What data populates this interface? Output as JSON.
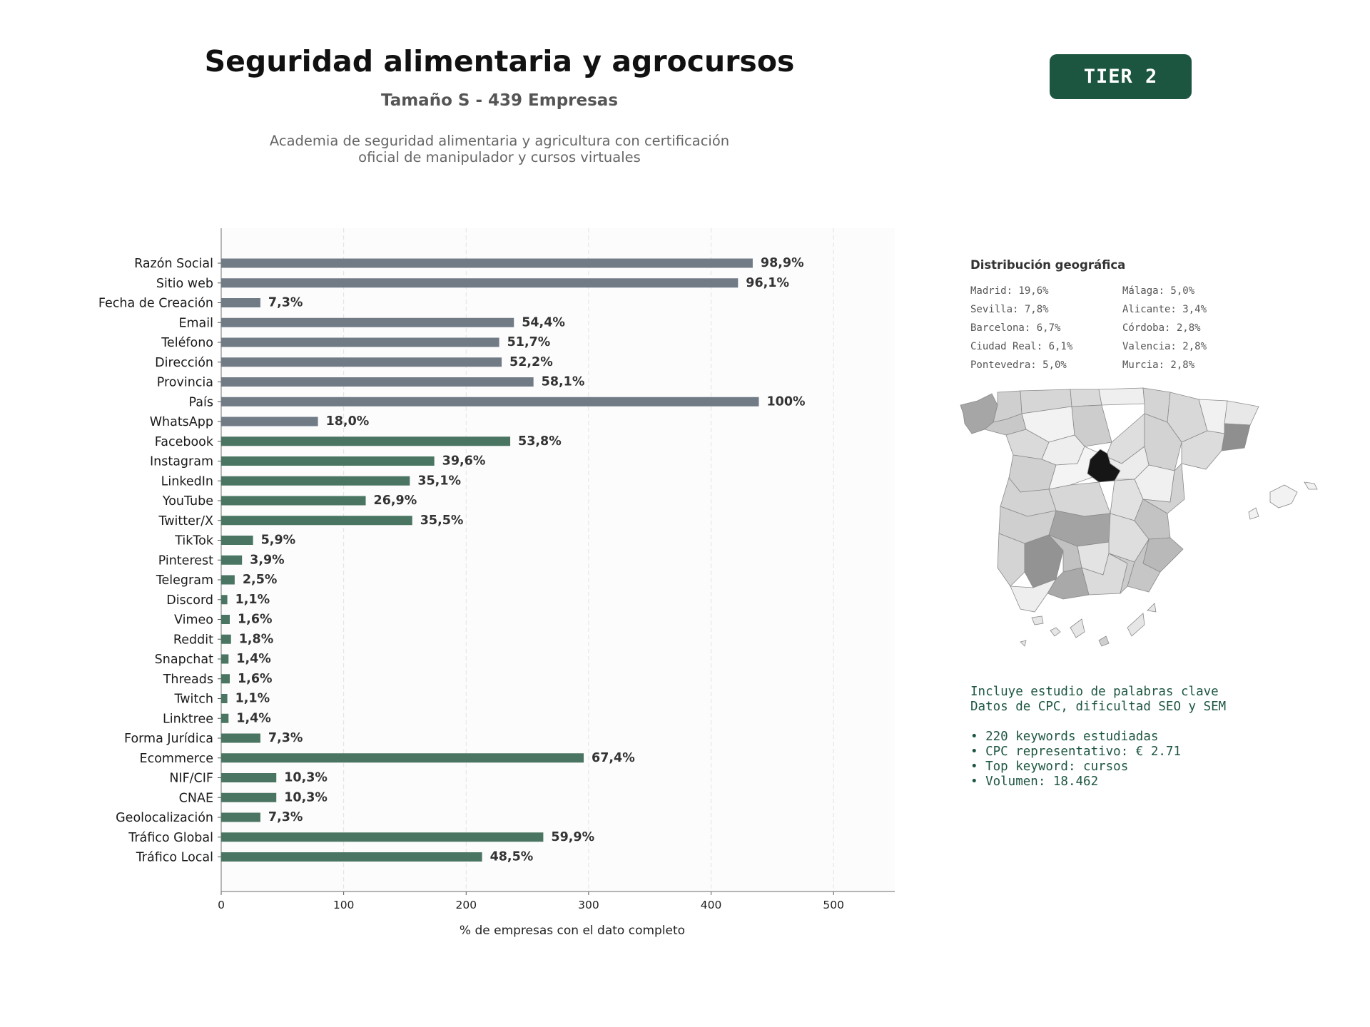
{
  "header": {
    "title": "Seguridad alimentaria y agrocursos",
    "subtitle": "Tamaño S - 439 Empresas",
    "description_line1": "Academia de seguridad alimentaria y agricultura con certificación",
    "description_line2": "oficial de manipulador y cursos virtuales",
    "tier_badge": "TIER 2"
  },
  "colors": {
    "gray_bar": "#717b86",
    "green_bar": "#4a7562",
    "badge": "#1d5640",
    "text_green": "#1d5640"
  },
  "chart_data": {
    "type": "bar",
    "orientation": "horizontal",
    "categories": [
      "Razón Social",
      "Sitio web",
      "Fecha de Creación",
      "Email",
      "Teléfono",
      "Dirección",
      "Provincia",
      "País",
      "WhatsApp",
      "Facebook",
      "Instagram",
      "LinkedIn",
      "YouTube",
      "Twitter/X",
      "TikTok",
      "Pinterest",
      "Telegram",
      "Discord",
      "Vimeo",
      "Reddit",
      "Snapchat",
      "Threads",
      "Twitch",
      "Linktree",
      "Forma Jurídica",
      "Ecommerce",
      "NIF/CIF",
      "CNAE",
      "Geolocalización",
      "Tráfico Global",
      "Tráfico Local"
    ],
    "values": [
      434,
      422,
      32,
      239,
      227,
      229,
      255,
      439,
      79,
      236,
      174,
      154,
      118,
      156,
      26,
      17,
      11,
      5,
      7,
      8,
      6,
      7,
      5,
      6,
      32,
      296,
      45,
      45,
      32,
      263,
      213
    ],
    "labels": [
      "98,9%",
      "96,1%",
      "7,3%",
      "54,4%",
      "51,7%",
      "52,2%",
      "58,1%",
      "100%",
      "18,0%",
      "53,8%",
      "39,6%",
      "35,1%",
      "26,9%",
      "35,5%",
      "5,9%",
      "3,9%",
      "2,5%",
      "1,1%",
      "1,6%",
      "1,8%",
      "1,4%",
      "1,6%",
      "1,1%",
      "1,4%",
      "7,3%",
      "67,4%",
      "10,3%",
      "10,3%",
      "7,3%",
      "59,9%",
      "48,5%"
    ],
    "bar_groups": [
      "gray",
      "gray",
      "gray",
      "gray",
      "gray",
      "gray",
      "gray",
      "gray",
      "gray",
      "green",
      "green",
      "green",
      "green",
      "green",
      "green",
      "green",
      "green",
      "green",
      "green",
      "green",
      "green",
      "green",
      "green",
      "green",
      "green",
      "green",
      "green",
      "green",
      "green",
      "green",
      "green"
    ],
    "xlabel": "% de empresas con el dato completo",
    "ylabel": "",
    "xlim": [
      0,
      550
    ],
    "xticks": [
      0,
      100,
      200,
      300,
      400,
      500
    ],
    "grid": "vertical dashed"
  },
  "geo": {
    "title": "Distribución geográfica",
    "col1": [
      "Madrid: 19,6%",
      "Sevilla: 7,8%",
      "Barcelona: 6,7%",
      "Ciudad Real: 6,1%",
      "Pontevedra: 5,0%"
    ],
    "col2": [
      "Málaga: 5,0%",
      "Alicante: 3,4%",
      "Córdoba: 2,8%",
      "Valencia: 2,8%",
      "Murcia: 2,8%"
    ]
  },
  "keywords": {
    "line1": "Incluye estudio de palabras clave",
    "line2": "Datos de CPC, dificultad SEO y SEM",
    "bullet1": "• 220 keywords estudiadas",
    "bullet2": "• CPC representativo: € 2.71",
    "bullet3": "• Top keyword: cursos",
    "bullet4": "• Volumen: 18.462"
  }
}
